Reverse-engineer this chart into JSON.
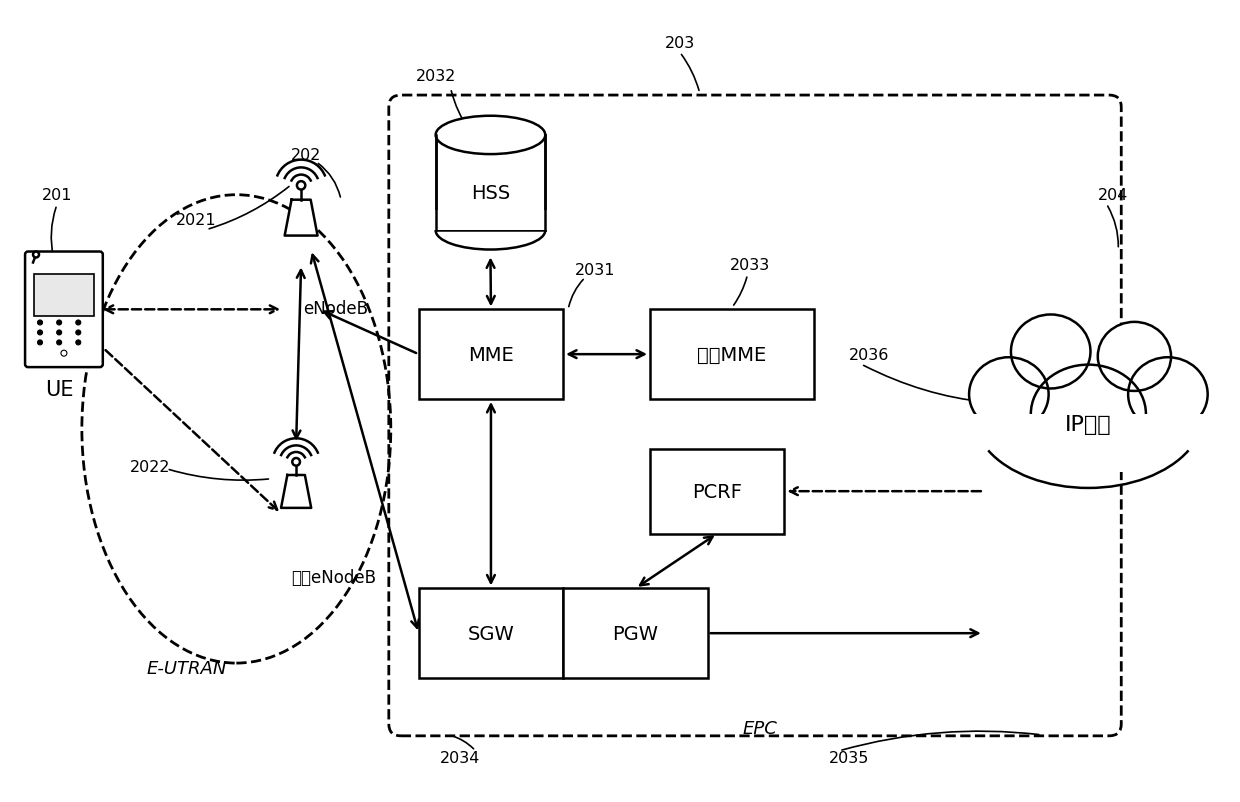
{
  "bg_color": "#ffffff",
  "fig_width": 12.4,
  "fig_height": 8.03,
  "labels": {
    "UE": "UE",
    "eNodeB": "eNodeB",
    "other_eNodeB": "其它eNodeB",
    "E_UTRAN": "E-UTRAN",
    "EPC": "EPC",
    "MME": "MME",
    "other_MME": "其它MME",
    "HSS": "HSS",
    "SGW": "SGW",
    "PGW": "PGW",
    "PCRF": "PCRF",
    "IP_service": "IP业务",
    "ref_201": "201",
    "ref_202": "202",
    "ref_203": "203",
    "ref_204": "204",
    "ref_2021": "2021",
    "ref_2022": "2022",
    "ref_2031": "2031",
    "ref_2032": "2032",
    "ref_2033": "2033",
    "ref_2034": "2034",
    "ref_2035": "2035",
    "ref_2036": "2036"
  }
}
